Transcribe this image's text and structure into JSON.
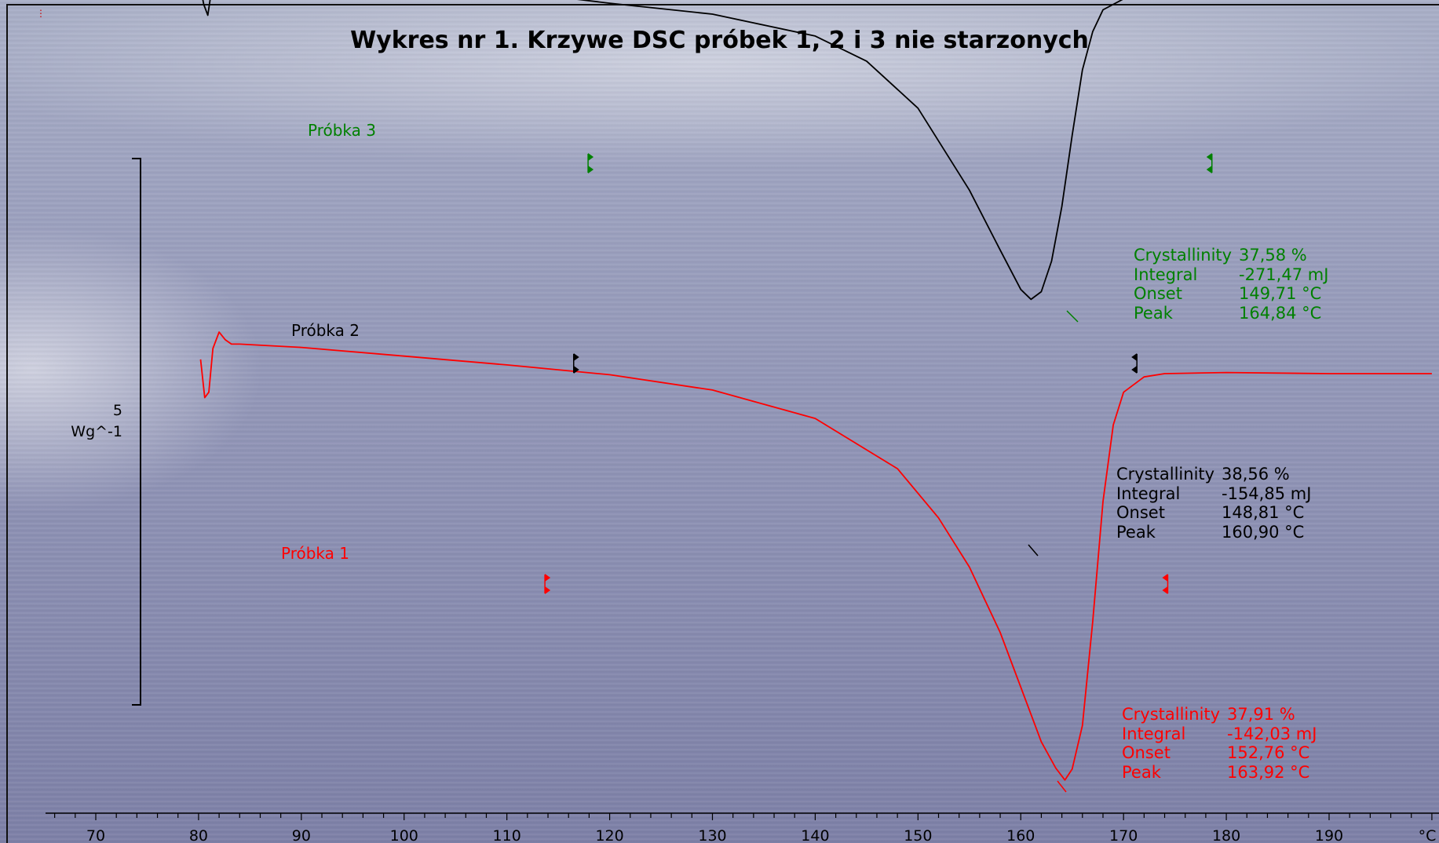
{
  "chart_data": {
    "type": "line",
    "title": "Wykres nr 1. Krzywe DSC próbek 1, 2 i 3 nie starzonych",
    "xlabel": "°C",
    "ylabel": "",
    "xlim": [
      65,
      200
    ],
    "xticks": [
      70,
      80,
      90,
      100,
      110,
      120,
      130,
      140,
      150,
      160,
      170,
      180,
      190
    ],
    "x_unit": "°C",
    "scale_bar": {
      "value": "5",
      "unit": "Wg^-1"
    },
    "grid": false,
    "series": [
      {
        "name": "Próbka 1",
        "color": "#ff0000",
        "points": [
          [
            80.2,
            -7.6
          ],
          [
            80.6,
            -7.95
          ],
          [
            81.0,
            -7.9
          ],
          [
            81.4,
            -7.5
          ],
          [
            82.0,
            -7.35
          ],
          [
            82.6,
            -7.42
          ],
          [
            83.2,
            -7.46
          ],
          [
            84,
            -7.46
          ],
          [
            90,
            -7.49
          ],
          [
            100,
            -7.57
          ],
          [
            110,
            -7.65
          ],
          [
            120,
            -7.74
          ],
          [
            130,
            -7.88
          ],
          [
            140,
            -8.14
          ],
          [
            148,
            -8.6
          ],
          [
            152,
            -9.05
          ],
          [
            155,
            -9.5
          ],
          [
            158,
            -10.1
          ],
          [
            160,
            -10.6
          ],
          [
            162,
            -11.1
          ],
          [
            163.4,
            -11.34
          ],
          [
            164.3,
            -11.45
          ],
          [
            165,
            -11.35
          ],
          [
            166,
            -10.95
          ],
          [
            167,
            -10.0
          ],
          [
            168,
            -8.9
          ],
          [
            169,
            -8.2
          ],
          [
            170,
            -7.9
          ],
          [
            172,
            -7.76
          ],
          [
            174,
            -7.73
          ],
          [
            180,
            -7.72
          ],
          [
            190,
            -7.73
          ],
          [
            200,
            -7.73
          ]
        ],
        "markers_x": [
          113.7,
          174.3
        ],
        "results": {
          "Crystallinity": "37,91 %",
          "Integral": "-142,03 mJ",
          "Onset": "152,76 °C",
          "Peak": "163,92 °C"
        }
      },
      {
        "name": "Próbka 2",
        "color": "#000000",
        "points": [
          [
            80.1,
            -4.15
          ],
          [
            80.5,
            -4.35
          ],
          [
            80.9,
            -4.45
          ],
          [
            81.3,
            -4.2
          ],
          [
            81.8,
            -4.0
          ],
          [
            82.3,
            -3.96
          ],
          [
            83,
            -4.04
          ],
          [
            84,
            -4.03
          ],
          [
            86,
            -4.06
          ],
          [
            90,
            -4.09
          ],
          [
            100,
            -4.16
          ],
          [
            110,
            -4.24
          ],
          [
            116.5,
            -4.3
          ],
          [
            120,
            -4.34
          ],
          [
            130,
            -4.44
          ],
          [
            140,
            -4.64
          ],
          [
            145,
            -4.87
          ],
          [
            150,
            -5.3
          ],
          [
            155,
            -6.05
          ],
          [
            158,
            -6.6
          ],
          [
            160,
            -6.96
          ],
          [
            161,
            -7.05
          ],
          [
            162,
            -6.98
          ],
          [
            163,
            -6.7
          ],
          [
            164,
            -6.2
          ],
          [
            165,
            -5.55
          ],
          [
            166,
            -4.95
          ],
          [
            167,
            -4.6
          ],
          [
            168,
            -4.4
          ],
          [
            170,
            -4.3
          ],
          [
            172,
            -4.27
          ],
          [
            175,
            -4.24
          ],
          [
            180,
            -4.24
          ],
          [
            190,
            -4.25
          ],
          [
            200,
            -4.25
          ]
        ],
        "markers_x": [
          116.5,
          171.3
        ],
        "results": {
          "Crystallinity": "38,56 %",
          "Integral": "-154,85 mJ",
          "Onset": "148,81 °C",
          "Peak": "160,90 °C"
        }
      },
      {
        "name": "Próbka 3",
        "color": "#008000",
        "points": [],
        "markers_x": [
          117.9,
          178.6
        ],
        "results": {
          "Crystallinity": "37,58 %",
          "Integral": "-271,47 mJ",
          "Onset": "149,71 °C",
          "Peak": "164,84 °C"
        }
      }
    ]
  },
  "labels": {
    "corner_mark": "⋮",
    "scale_value": "5",
    "scale_unit": "Wg^-1",
    "axis_unit": "°C",
    "probka1": "Próbka 1",
    "probka2": "Próbka 2",
    "probka3": "Próbka 3",
    "result_keys": [
      "Crystallinity",
      "Integral",
      "Onset",
      "Peak"
    ]
  }
}
